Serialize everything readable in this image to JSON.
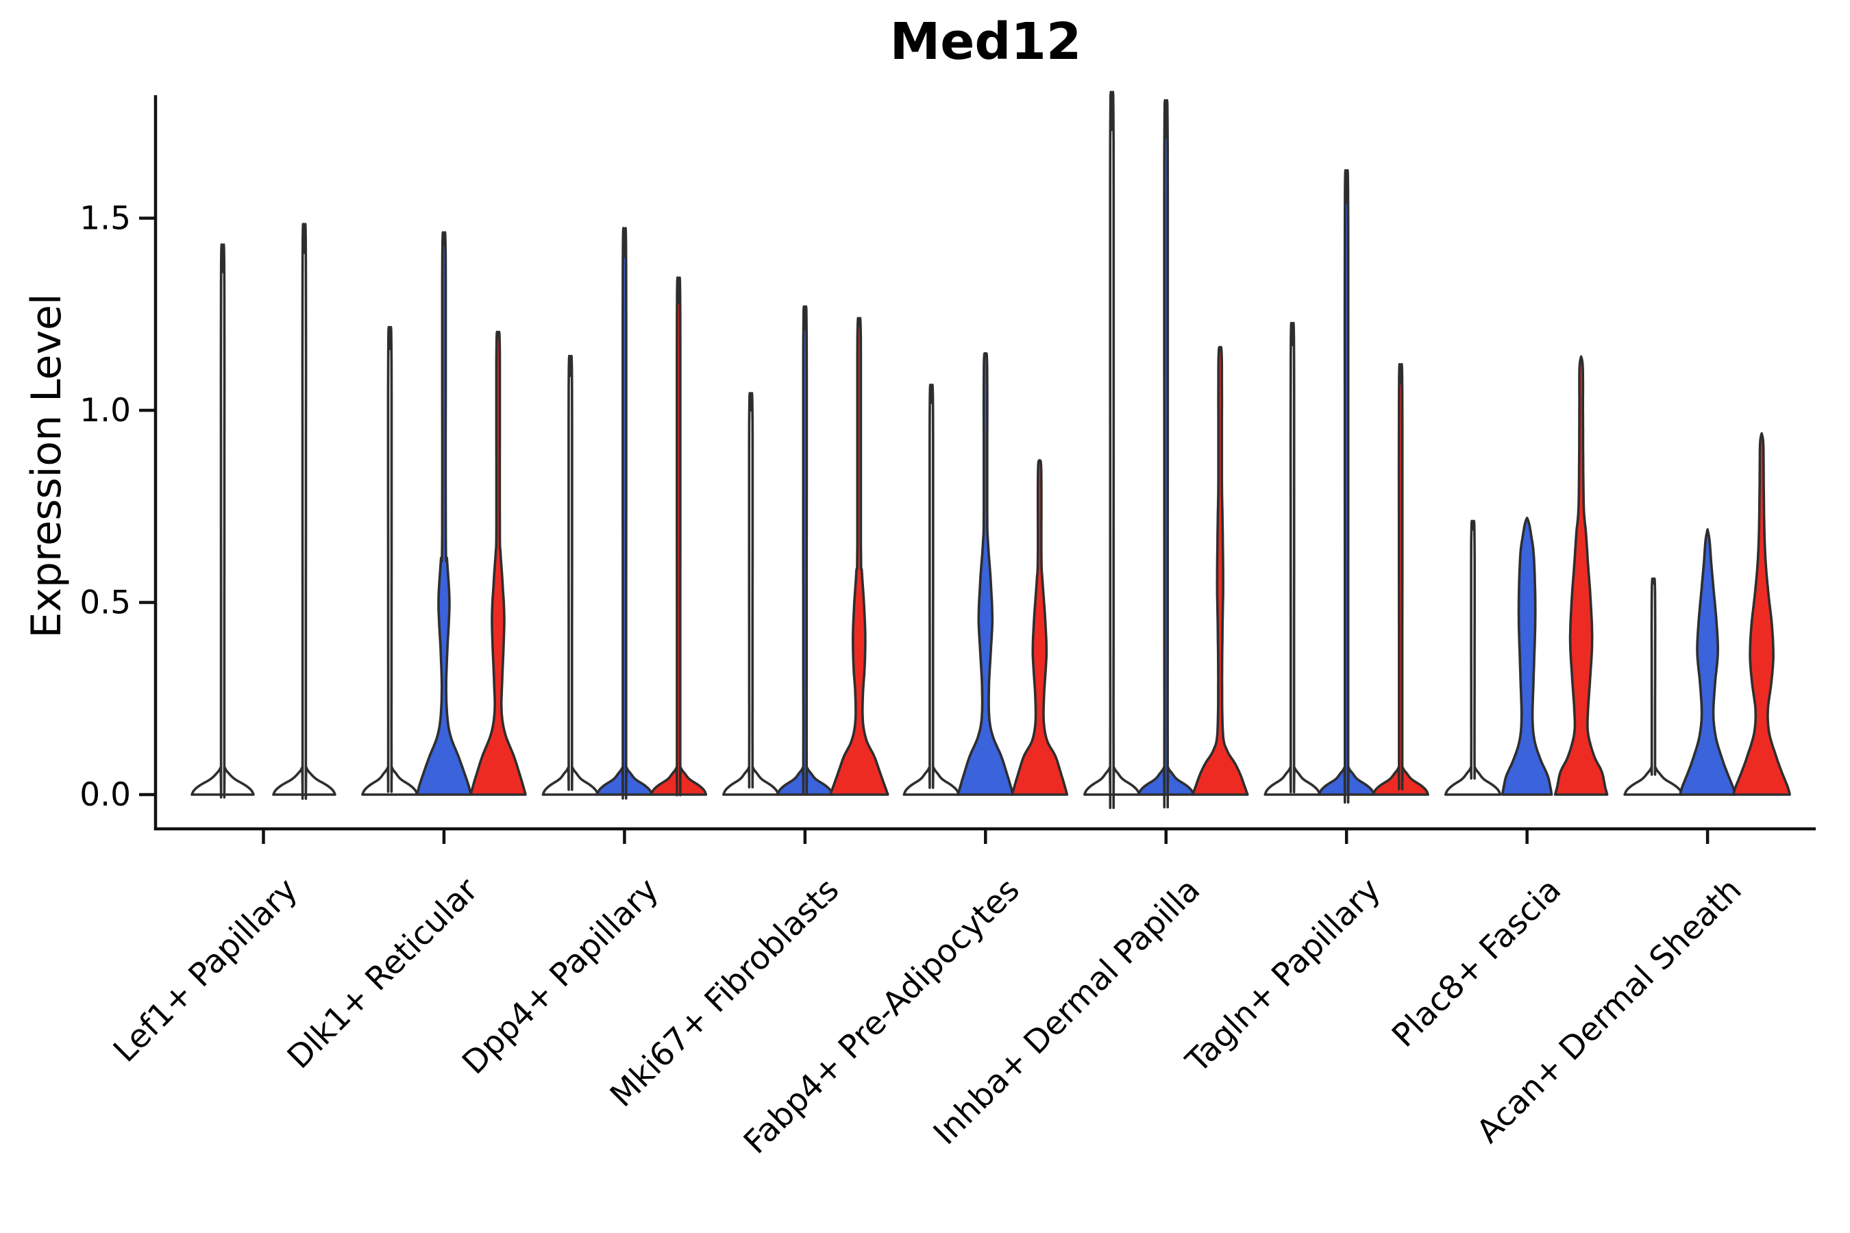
{
  "figure": {
    "title": "Med12"
  },
  "y_axis": {
    "label": "Expression Level",
    "tick_labels": [
      "0.0",
      "0.5",
      "1.0",
      "1.5"
    ],
    "tick_values": [
      0.0,
      0.5,
      1.0,
      1.5
    ]
  },
  "x_axis": {
    "categories": [
      "Lef1+ Papillary",
      "Dlk1+ Reticular",
      "Dpp4+ Papillary",
      "Mki67+ Fibroblasts",
      "Fabp4+ Pre-Adipocytes",
      "Inhba+ Dermal Papilla",
      "Tagln+ Papillary",
      "Plac8+ Fascia",
      "Acan+ Dermal Sheath"
    ]
  },
  "palette": {
    "blue": "#3A63DC",
    "red": "#EE2B23",
    "plain": "#FFFFFF",
    "violin_stroke": "#2E2E2E",
    "spine": "#111111",
    "text": "#000000"
  },
  "chart_data": {
    "type": "violin",
    "title": "Med12",
    "ylabel": "Expression Level",
    "xlabel": "",
    "ylim": [
      -0.09,
      1.82
    ],
    "yticks": [
      0.0,
      0.5,
      1.0,
      1.5
    ],
    "grid": false,
    "legend": "none",
    "description": "Grouped violin plot of Med12 expression per fibroblast subtype; each category holds a thin unfilled violin (left), a blue violin (center) and a red violin (right). Most density sits at 0 with long thin tails; profiles give half-width in px at expression v.",
    "categories": [
      "Lef1+ Papillary",
      "Dlk1+ Reticular",
      "Dpp4+ Papillary",
      "Mki67+ Fibroblasts",
      "Fabp4+ Pre-Adipocytes",
      "Inhba+ Dermal Papilla",
      "Tagln+ Papillary",
      "Plac8+ Fascia",
      "Acan+ Dermal Sheath"
    ],
    "violins": [
      {
        "category": 0,
        "dx": -59.5,
        "color": "plain",
        "max": 1.36,
        "shape": "plain",
        "base_hw": 45
      },
      {
        "category": 0,
        "dx": 59.5,
        "color": "plain",
        "max": 1.41,
        "shape": "plain",
        "base_hw": 45
      },
      {
        "category": 1,
        "dx": -79,
        "color": "plain",
        "max": 1.16,
        "shape": "plain",
        "base_hw": 40
      },
      {
        "category": 1,
        "dx": 0,
        "color": "blue",
        "max": 1.43,
        "shape": "points",
        "points": [
          [
            0,
            39
          ],
          [
            0.02,
            36.5
          ],
          [
            0.05,
            31
          ],
          [
            0.1,
            21
          ],
          [
            0.15,
            10
          ],
          [
            0.2,
            5
          ],
          [
            0.28,
            3.2
          ],
          [
            0.38,
            5
          ],
          [
            0.5,
            8
          ],
          [
            0.61,
            4.5
          ],
          [
            0.68,
            2.6
          ],
          [
            1.4,
            2.4
          ],
          [
            1.43,
            0
          ]
        ]
      },
      {
        "category": 1,
        "dx": 79,
        "color": "red",
        "max": 1.19,
        "shape": "points",
        "points": [
          [
            0,
            40
          ],
          [
            0.02,
            37
          ],
          [
            0.05,
            32
          ],
          [
            0.1,
            23
          ],
          [
            0.16,
            10
          ],
          [
            0.22,
            5
          ],
          [
            0.3,
            6
          ],
          [
            0.45,
            9
          ],
          [
            0.55,
            6.5
          ],
          [
            0.63,
            3.5
          ],
          [
            0.7,
            2.5
          ],
          [
            1.16,
            2.4
          ],
          [
            1.19,
            0
          ]
        ]
      },
      {
        "category": 2,
        "dx": -79,
        "color": "plain",
        "max": 1.09,
        "shape": "plain",
        "base_hw": 40
      },
      {
        "category": 2,
        "dx": 0,
        "color": "blue",
        "max": 1.4,
        "shape": "plain",
        "base_hw": 40
      },
      {
        "category": 2,
        "dx": 79,
        "color": "red",
        "max": 1.28,
        "shape": "plain",
        "base_hw": 40
      },
      {
        "category": 3,
        "dx": -79,
        "color": "plain",
        "max": 1.0,
        "shape": "plain",
        "base_hw": 40
      },
      {
        "category": 3,
        "dx": 0,
        "color": "blue",
        "max": 1.21,
        "shape": "plain",
        "base_hw": 40
      },
      {
        "category": 3,
        "dx": 79,
        "color": "red",
        "max": 1.22,
        "shape": "points",
        "points": [
          [
            0,
            42
          ],
          [
            0.02,
            38
          ],
          [
            0.06,
            30
          ],
          [
            0.1,
            22
          ],
          [
            0.14,
            11
          ],
          [
            0.19,
            5.5
          ],
          [
            0.26,
            5.5
          ],
          [
            0.33,
            8
          ],
          [
            0.41,
            9
          ],
          [
            0.5,
            7
          ],
          [
            0.58,
            4
          ],
          [
            0.65,
            2.6
          ],
          [
            1.19,
            2.4
          ],
          [
            1.22,
            0
          ]
        ]
      },
      {
        "category": 4,
        "dx": -79,
        "color": "plain",
        "max": 1.02,
        "shape": "plain",
        "base_hw": 40
      },
      {
        "category": 4,
        "dx": 0,
        "color": "blue",
        "max": 1.14,
        "shape": "points",
        "points": [
          [
            0,
            40
          ],
          [
            0.02,
            37
          ],
          [
            0.05,
            32
          ],
          [
            0.1,
            23
          ],
          [
            0.15,
            11
          ],
          [
            0.2,
            5.5
          ],
          [
            0.28,
            5
          ],
          [
            0.38,
            8
          ],
          [
            0.46,
            10
          ],
          [
            0.56,
            7.5
          ],
          [
            0.66,
            3.5
          ],
          [
            0.74,
            2.5
          ],
          [
            1.11,
            2.4
          ],
          [
            1.14,
            0
          ]
        ]
      },
      {
        "category": 4,
        "dx": 79,
        "color": "red",
        "max": 0.87,
        "shape": "points",
        "points": [
          [
            0,
            40
          ],
          [
            0.02,
            37
          ],
          [
            0.05,
            32
          ],
          [
            0.1,
            23
          ],
          [
            0.14,
            11
          ],
          [
            0.19,
            6
          ],
          [
            0.26,
            6.5
          ],
          [
            0.33,
            9
          ],
          [
            0.38,
            10
          ],
          [
            0.46,
            8
          ],
          [
            0.56,
            4
          ],
          [
            0.62,
            2.6
          ],
          [
            0.84,
            2.4
          ],
          [
            0.87,
            0
          ]
        ]
      },
      {
        "category": 5,
        "dx": -79,
        "color": "plain",
        "max": 1.73,
        "shape": "plain",
        "base_hw": 40
      },
      {
        "category": 5,
        "dx": 0,
        "color": "blue",
        "max": 1.71,
        "shape": "plain",
        "base_hw": 40
      },
      {
        "category": 5,
        "dx": 79,
        "color": "red",
        "max": 1.16,
        "shape": "points",
        "points": [
          [
            0,
            40
          ],
          [
            0.02,
            36
          ],
          [
            0.05,
            30
          ],
          [
            0.08,
            22
          ],
          [
            0.115,
            10
          ],
          [
            0.16,
            4
          ],
          [
            0.3,
            2.8
          ],
          [
            0.45,
            3.6
          ],
          [
            0.55,
            4.4
          ],
          [
            0.7,
            3.6
          ],
          [
            0.82,
            2.6
          ],
          [
            1.13,
            2.4
          ],
          [
            1.16,
            0
          ]
        ]
      },
      {
        "category": 6,
        "dx": -79,
        "color": "plain",
        "max": 1.17,
        "shape": "plain",
        "base_hw": 40
      },
      {
        "category": 6,
        "dx": 0,
        "color": "blue",
        "max": 1.54,
        "shape": "plain",
        "base_hw": 40
      },
      {
        "category": 6,
        "dx": 79,
        "color": "red",
        "max": 1.07,
        "shape": "plain",
        "base_hw": 40
      },
      {
        "category": 7,
        "dx": -79,
        "color": "plain",
        "max": 0.69,
        "shape": "plain",
        "base_hw": 40
      },
      {
        "category": 7,
        "dx": 0,
        "color": "blue",
        "max": 0.72,
        "shape": "points",
        "points": [
          [
            0,
            36
          ],
          [
            0.02,
            34
          ],
          [
            0.05,
            30
          ],
          [
            0.09,
            20
          ],
          [
            0.14,
            11
          ],
          [
            0.2,
            8
          ],
          [
            0.3,
            9.5
          ],
          [
            0.45,
            12
          ],
          [
            0.55,
            11.5
          ],
          [
            0.63,
            9.5
          ],
          [
            0.675,
            6
          ],
          [
            0.705,
            3
          ],
          [
            0.72,
            0
          ]
        ]
      },
      {
        "category": 7,
        "dx": 79,
        "color": "red",
        "max": 1.14,
        "shape": "points",
        "points": [
          [
            0,
            38
          ],
          [
            0.02,
            35
          ],
          [
            0.06,
            30
          ],
          [
            0.1,
            19
          ],
          [
            0.16,
            10
          ],
          [
            0.22,
            10
          ],
          [
            0.3,
            13
          ],
          [
            0.4,
            16
          ],
          [
            0.5,
            14
          ],
          [
            0.6,
            10
          ],
          [
            0.68,
            7
          ],
          [
            0.74,
            4
          ],
          [
            0.85,
            3
          ],
          [
            1.0,
            2.6
          ],
          [
            1.11,
            2.4
          ],
          [
            1.14,
            0
          ]
        ]
      },
      {
        "category": 8,
        "dx": -79,
        "color": "plain",
        "max": 0.55,
        "shape": "plain",
        "base_hw": 42
      },
      {
        "category": 8,
        "dx": 0,
        "color": "blue",
        "max": 0.69,
        "shape": "points",
        "points": [
          [
            0,
            40
          ],
          [
            0.02,
            37
          ],
          [
            0.06,
            28
          ],
          [
            0.1,
            20
          ],
          [
            0.15,
            12
          ],
          [
            0.21,
            8.5
          ],
          [
            0.29,
            11
          ],
          [
            0.37,
            15
          ],
          [
            0.45,
            13
          ],
          [
            0.53,
            9
          ],
          [
            0.6,
            5.5
          ],
          [
            0.66,
            3
          ],
          [
            0.69,
            0
          ]
        ]
      },
      {
        "category": 8,
        "dx": 79,
        "color": "red",
        "max": 0.94,
        "shape": "points",
        "points": [
          [
            0,
            41
          ],
          [
            0.02,
            38
          ],
          [
            0.06,
            29
          ],
          [
            0.1,
            21
          ],
          [
            0.16,
            11
          ],
          [
            0.22,
            9
          ],
          [
            0.29,
            14
          ],
          [
            0.36,
            17
          ],
          [
            0.44,
            15
          ],
          [
            0.52,
            10
          ],
          [
            0.6,
            6
          ],
          [
            0.68,
            4
          ],
          [
            0.8,
            3
          ],
          [
            0.91,
            2.4
          ],
          [
            0.94,
            0
          ]
        ]
      }
    ]
  }
}
